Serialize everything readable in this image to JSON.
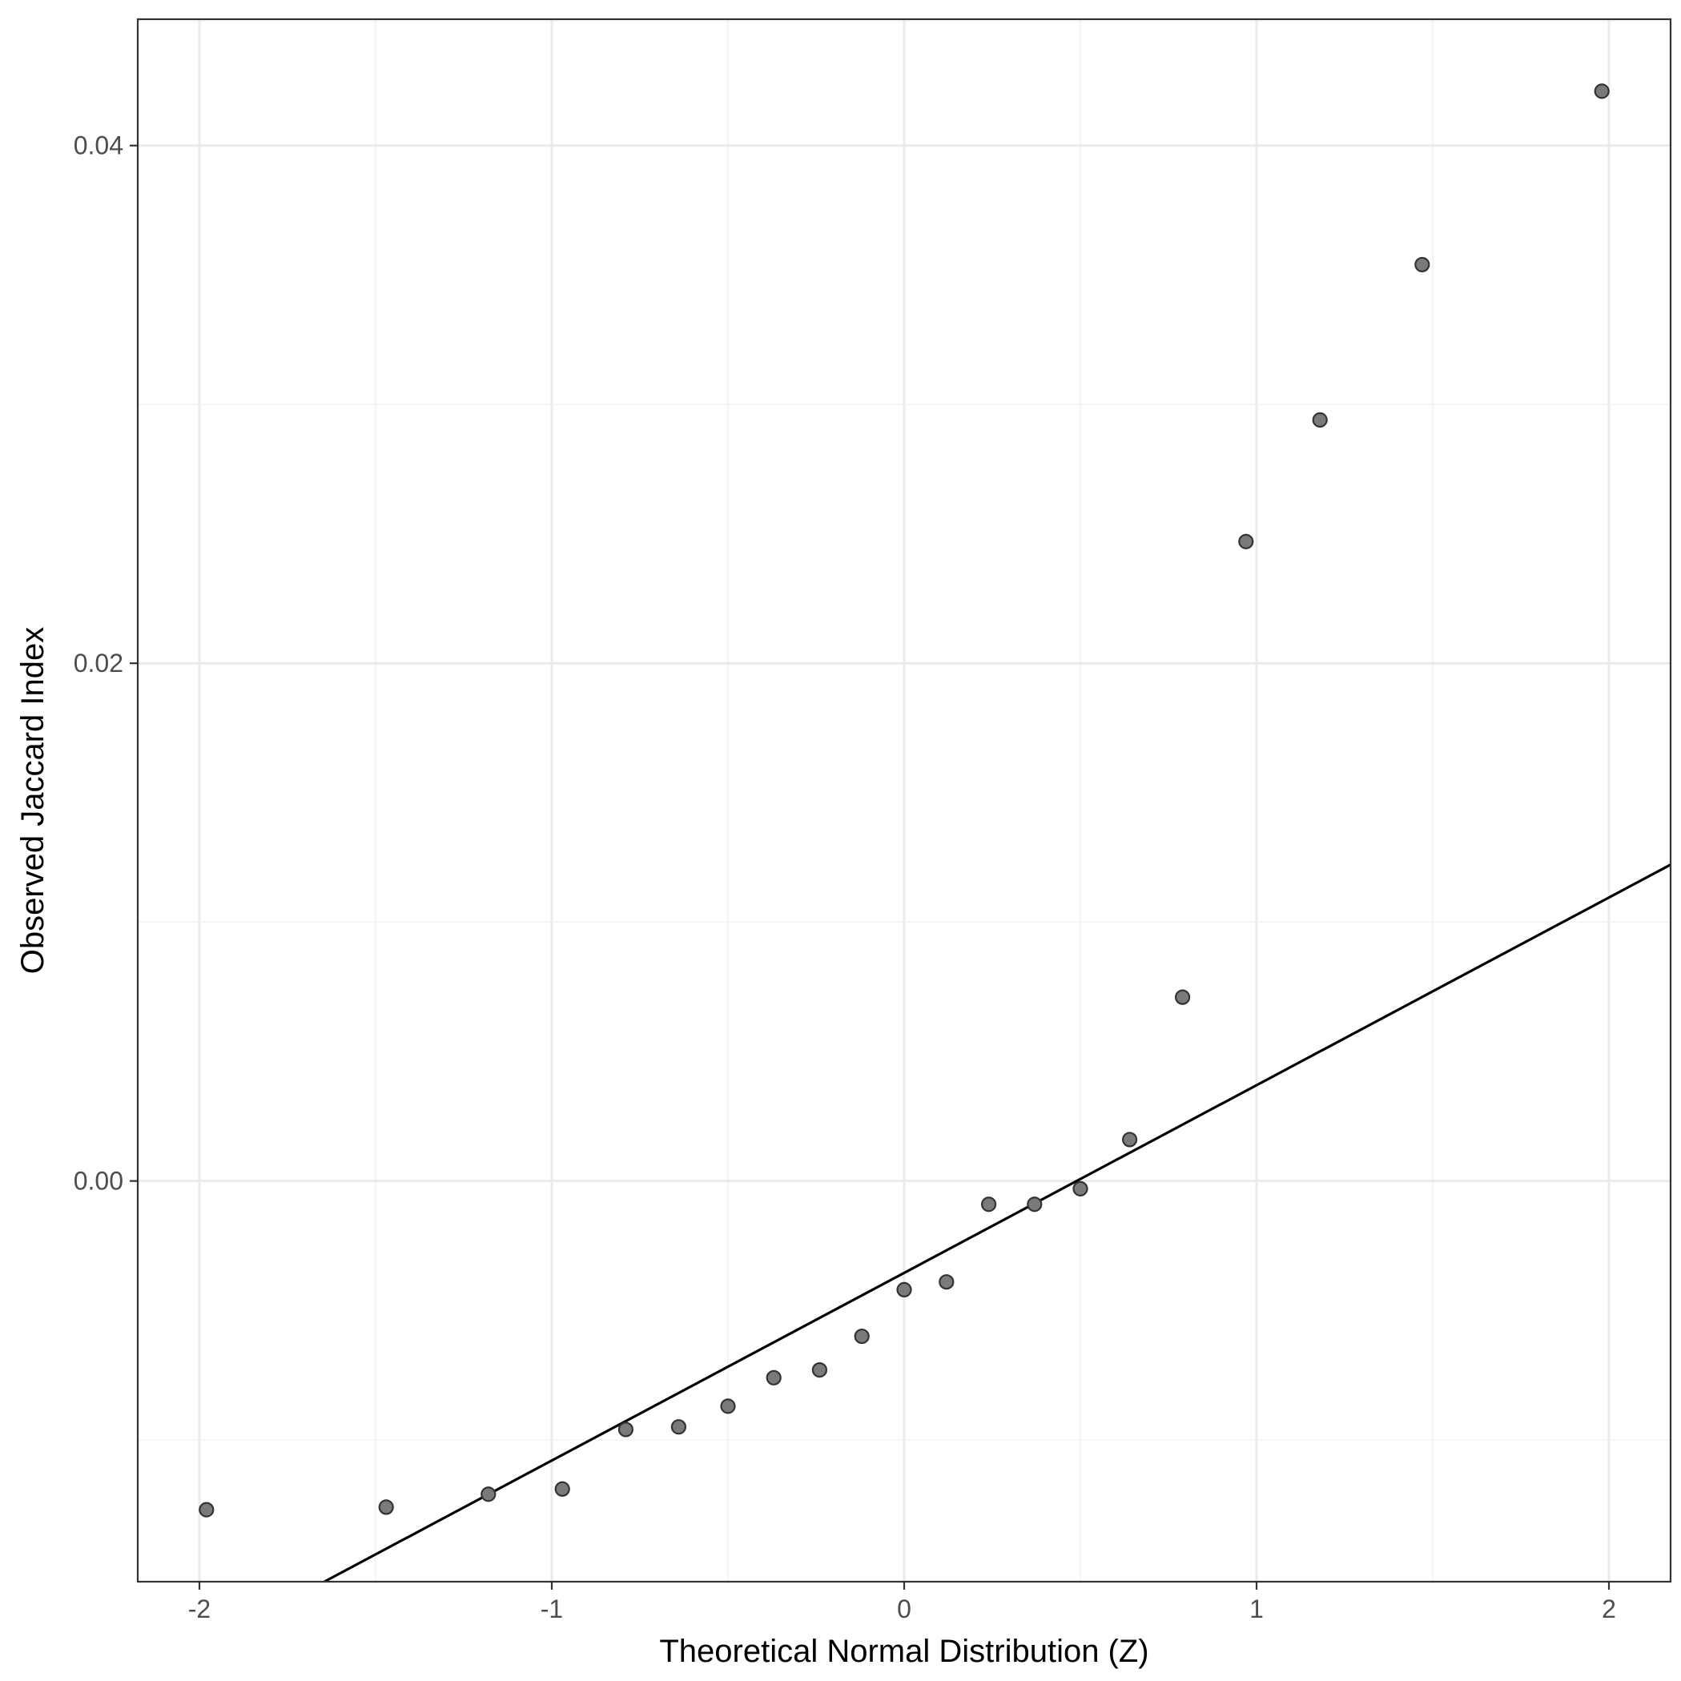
{
  "chart_data": {
    "type": "scatter",
    "title": "",
    "xlabel": "Theoretical Normal Distribution (Z)",
    "ylabel": "Observed Jaccard Index",
    "xlim": [
      -2.175,
      2.175
    ],
    "ylim": [
      -0.01548,
      0.04488
    ],
    "x_ticks": [
      -2,
      -1,
      0,
      1,
      2
    ],
    "x_tick_labels": [
      "-2",
      "-1",
      "0",
      "1",
      "2"
    ],
    "y_ticks": [
      0.0,
      0.02,
      0.04
    ],
    "y_tick_labels": [
      "0.00",
      "0.02",
      "0.04"
    ],
    "x_minor_ticks": [
      -1.5,
      -0.5,
      0.5,
      1.5
    ],
    "y_minor_ticks": [
      -0.01,
      0.01,
      0.03
    ],
    "grid": true,
    "points": {
      "x": [
        -1.98,
        -1.47,
        -1.18,
        -0.97,
        -0.79,
        -0.64,
        -0.5,
        -0.37,
        -0.24,
        -0.12,
        0.0,
        0.12,
        0.24,
        0.37,
        0.5,
        0.64,
        0.79,
        0.97,
        1.18,
        1.47,
        1.98
      ],
      "y": [
        -0.0127,
        -0.0126,
        -0.0121,
        -0.0119,
        -0.0096,
        -0.0095,
        -0.0087,
        -0.0076,
        -0.0073,
        -0.006,
        -0.0042,
        -0.0039,
        -0.0009,
        -0.0009,
        -0.0003,
        0.0016,
        0.0071,
        0.0247,
        0.0294,
        0.0354,
        0.0421
      ]
    },
    "reference_line": {
      "slope": 0.00725,
      "intercept": -0.00355
    }
  }
}
